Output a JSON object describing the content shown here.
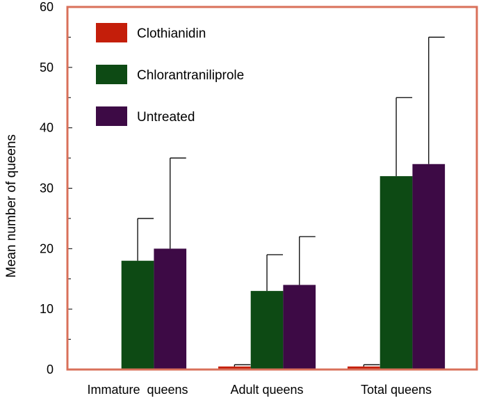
{
  "chart_data": {
    "type": "bar",
    "title": "",
    "xlabel": "",
    "ylabel": "Mean number of queens",
    "ylim": [
      0,
      60
    ],
    "yticks": [
      0,
      10,
      20,
      30,
      40,
      50,
      60
    ],
    "minor_yticks": [
      5,
      15,
      25,
      35,
      45,
      55
    ],
    "grid": false,
    "legend_position": "top-left",
    "frame_color": "#d9705a",
    "categories": [
      "Immature  queens",
      "Adult queens",
      "Total queens"
    ],
    "series": [
      {
        "name": "Clothianidin",
        "color": "#c41e0a",
        "values": [
          0,
          0.5,
          0.5
        ],
        "error_upper": [
          0,
          0.8,
          0.8
        ]
      },
      {
        "name": "Chlorantraniliprole",
        "color": "#0d4a14",
        "values": [
          18,
          13,
          32
        ],
        "error_upper": [
          25,
          19,
          45
        ]
      },
      {
        "name": "Untreated",
        "color": "#3d0a45",
        "values": [
          20,
          14,
          34
        ],
        "error_upper": [
          35,
          22,
          55
        ]
      }
    ]
  }
}
